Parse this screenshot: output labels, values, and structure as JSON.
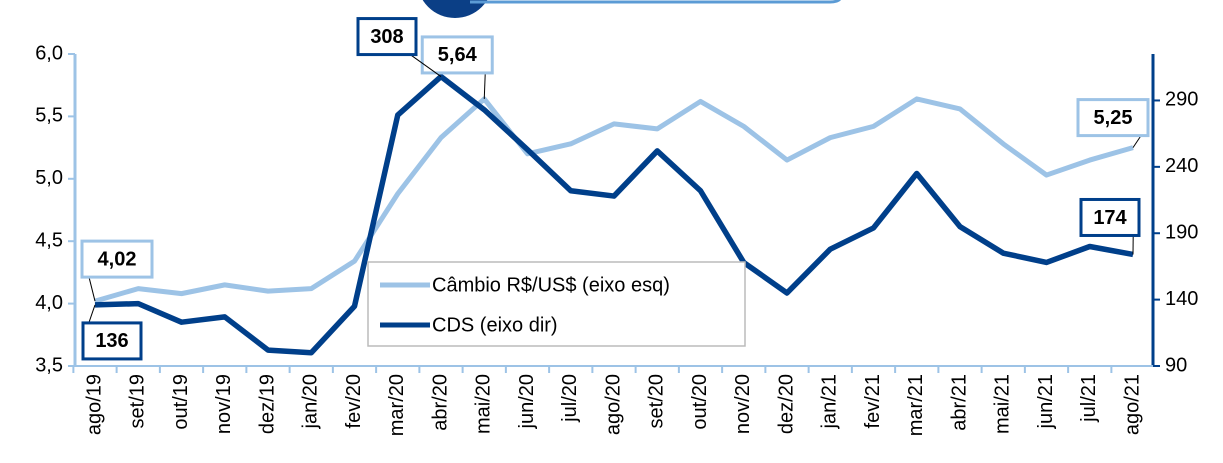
{
  "chart_data": {
    "type": "line",
    "categories": [
      "ago/19",
      "set/19",
      "out/19",
      "nov/19",
      "dez/19",
      "jan/20",
      "fev/20",
      "mar/20",
      "abr/20",
      "mai/20",
      "jun/20",
      "jul/20",
      "ago/20",
      "set/20",
      "out/20",
      "nov/20",
      "dez/20",
      "jan/21",
      "fev/21",
      "mar/21",
      "abr/21",
      "mai/21",
      "jun/21",
      "jul/21",
      "ago/21"
    ],
    "series": [
      {
        "name": "Câmbio R$/US$ (eixo esq)",
        "color": "#9dc3e6",
        "axis": "y",
        "values": [
          4.02,
          4.12,
          4.08,
          4.15,
          4.1,
          4.12,
          4.34,
          4.88,
          5.33,
          5.64,
          5.2,
          5.28,
          5.44,
          5.4,
          5.62,
          5.42,
          5.15,
          5.33,
          5.42,
          5.64,
          5.56,
          5.28,
          5.03,
          5.15,
          5.25
        ],
        "value_labels": [
          "4,02",
          null,
          null,
          null,
          null,
          null,
          null,
          null,
          null,
          "5,64",
          null,
          null,
          null,
          null,
          null,
          null,
          null,
          null,
          null,
          null,
          null,
          null,
          null,
          null,
          "5,25"
        ]
      },
      {
        "name": "CDS (eixo dir)",
        "color": "#003f8a",
        "axis": "y2",
        "values": [
          136,
          137,
          123,
          127,
          102,
          100,
          135,
          279,
          308,
          283,
          253,
          222,
          218,
          252,
          222,
          168,
          145,
          178,
          194,
          235,
          195,
          175,
          168,
          180,
          174
        ],
        "value_labels": [
          "136",
          null,
          null,
          null,
          null,
          null,
          null,
          null,
          "308",
          null,
          null,
          null,
          null,
          null,
          null,
          null,
          null,
          null,
          null,
          null,
          null,
          null,
          null,
          null,
          "174"
        ]
      }
    ],
    "ylim": [
      3.5,
      6.0
    ],
    "yticks": [
      {
        "value": 3.5,
        "label": "3,5"
      },
      {
        "value": 4.0,
        "label": "4,0"
      },
      {
        "value": 4.5,
        "label": "4,5"
      },
      {
        "value": 5.0,
        "label": "5,0"
      },
      {
        "value": 5.5,
        "label": "5,5"
      },
      {
        "value": 6.0,
        "label": "6,0"
      }
    ],
    "y2lim": [
      90,
      325
    ],
    "y2ticks": [
      90,
      140,
      190,
      240,
      290
    ],
    "legend": "center"
  }
}
